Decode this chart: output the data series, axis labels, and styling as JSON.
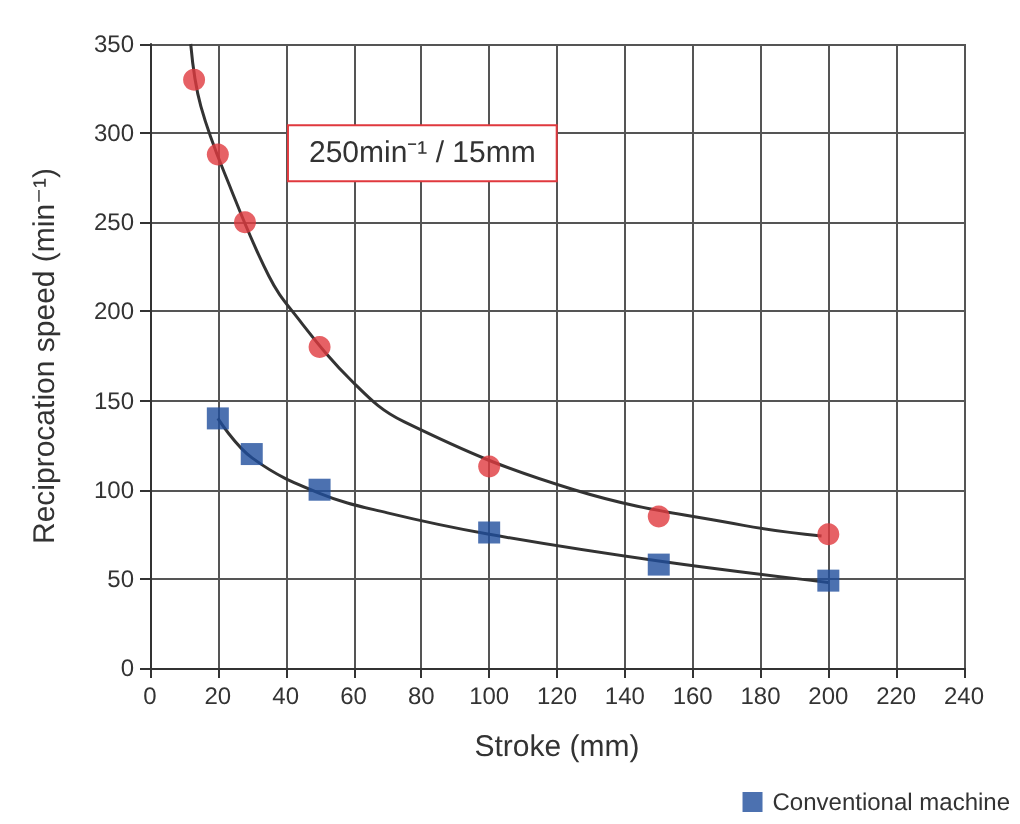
{
  "chart_data": {
    "type": "scatter",
    "xlabel": "Stroke (mm)",
    "ylabel": "Reciprocation speed (min⁻¹)",
    "xlim": [
      0,
      240
    ],
    "xticks": [
      0,
      20,
      40,
      60,
      80,
      100,
      120,
      140,
      160,
      180,
      200,
      220,
      240
    ],
    "ylim": [
      0,
      350
    ],
    "yticks": [
      0,
      50,
      100,
      150,
      200,
      250,
      300,
      350
    ],
    "grid": true,
    "legend": "bottom",
    "annotations": [
      {
        "text": "250min⁻¹ / 15mm",
        "x": 28,
        "y": 250
      }
    ],
    "series": [
      {
        "type": "line",
        "color": "#333333",
        "marker": "none",
        "x": [
          12,
          15,
          24,
          35,
          42,
          60,
          75,
          125,
          175,
          198
        ],
        "values": [
          350,
          315,
          268,
          220,
          200,
          160,
          138,
          100,
          80,
          74
        ]
      },
      {
        "type": "line",
        "color": "#333333",
        "marker": "none",
        "x": [
          20,
          30,
          50,
          70,
          100,
          150,
          200
        ],
        "values": [
          140,
          118,
          98,
          87,
          75,
          60,
          48
        ]
      },
      {
        "color": "#e0393e",
        "marker": "circle",
        "x": [
          13,
          20,
          28,
          50,
          100,
          150,
          200
        ],
        "values": [
          330,
          288,
          250,
          180,
          113,
          85,
          75
        ]
      },
      {
        "name": "Conventional machine",
        "color": "#1f4e9c",
        "marker": "square",
        "x": [
          20,
          30,
          50,
          100,
          150,
          200
        ],
        "values": [
          140,
          120,
          100,
          76,
          58,
          49
        ]
      }
    ]
  }
}
